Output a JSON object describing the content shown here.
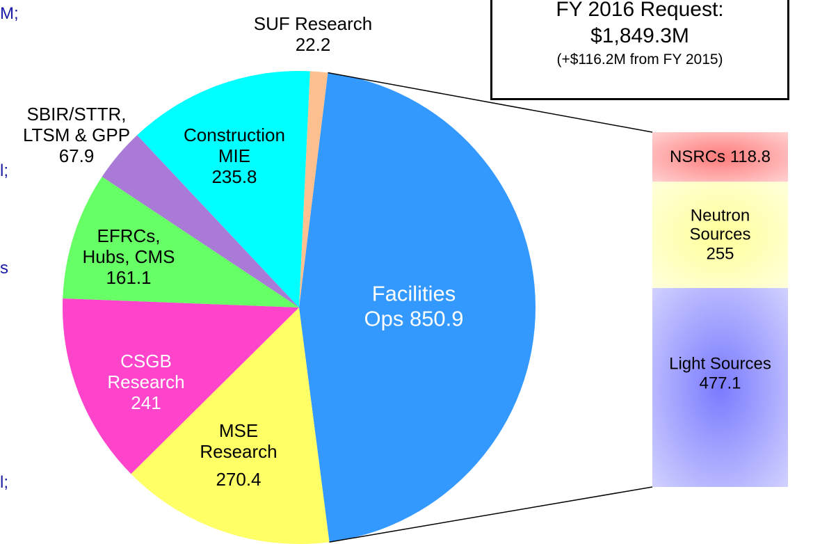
{
  "chart_data": {
    "type": "pie",
    "annotations": [
      "FY 2016 Request:",
      "$1,849.3M",
      "(+$116.2M from FY 2015)"
    ],
    "side_fragments": [
      "M;",
      "l;",
      "s",
      "l;"
    ],
    "categories": [
      "Facilities Ops",
      "MSE Research",
      "CSGB Research",
      "EFRCs, Hubs, CMS",
      "SBIR/STTR, LTSM & GPP",
      "Construction MIE",
      "SUF Research"
    ],
    "values": [
      850.9,
      270.4,
      241,
      161.1,
      67.9,
      235.8,
      22.2
    ],
    "colors": [
      "#3399ff",
      "#ffff66",
      "#ff44cc",
      "#66ff66",
      "#a97bd6",
      "#00ffff",
      "#ffc090"
    ],
    "breakdown": {
      "categories": [
        "NSRCs",
        "Neutron Sources",
        "Light Sources"
      ],
      "values": [
        118.8,
        255,
        477.1
      ],
      "colors": [
        "#ff7a7a",
        "#ffff99",
        "#7a7aff"
      ]
    }
  }
}
